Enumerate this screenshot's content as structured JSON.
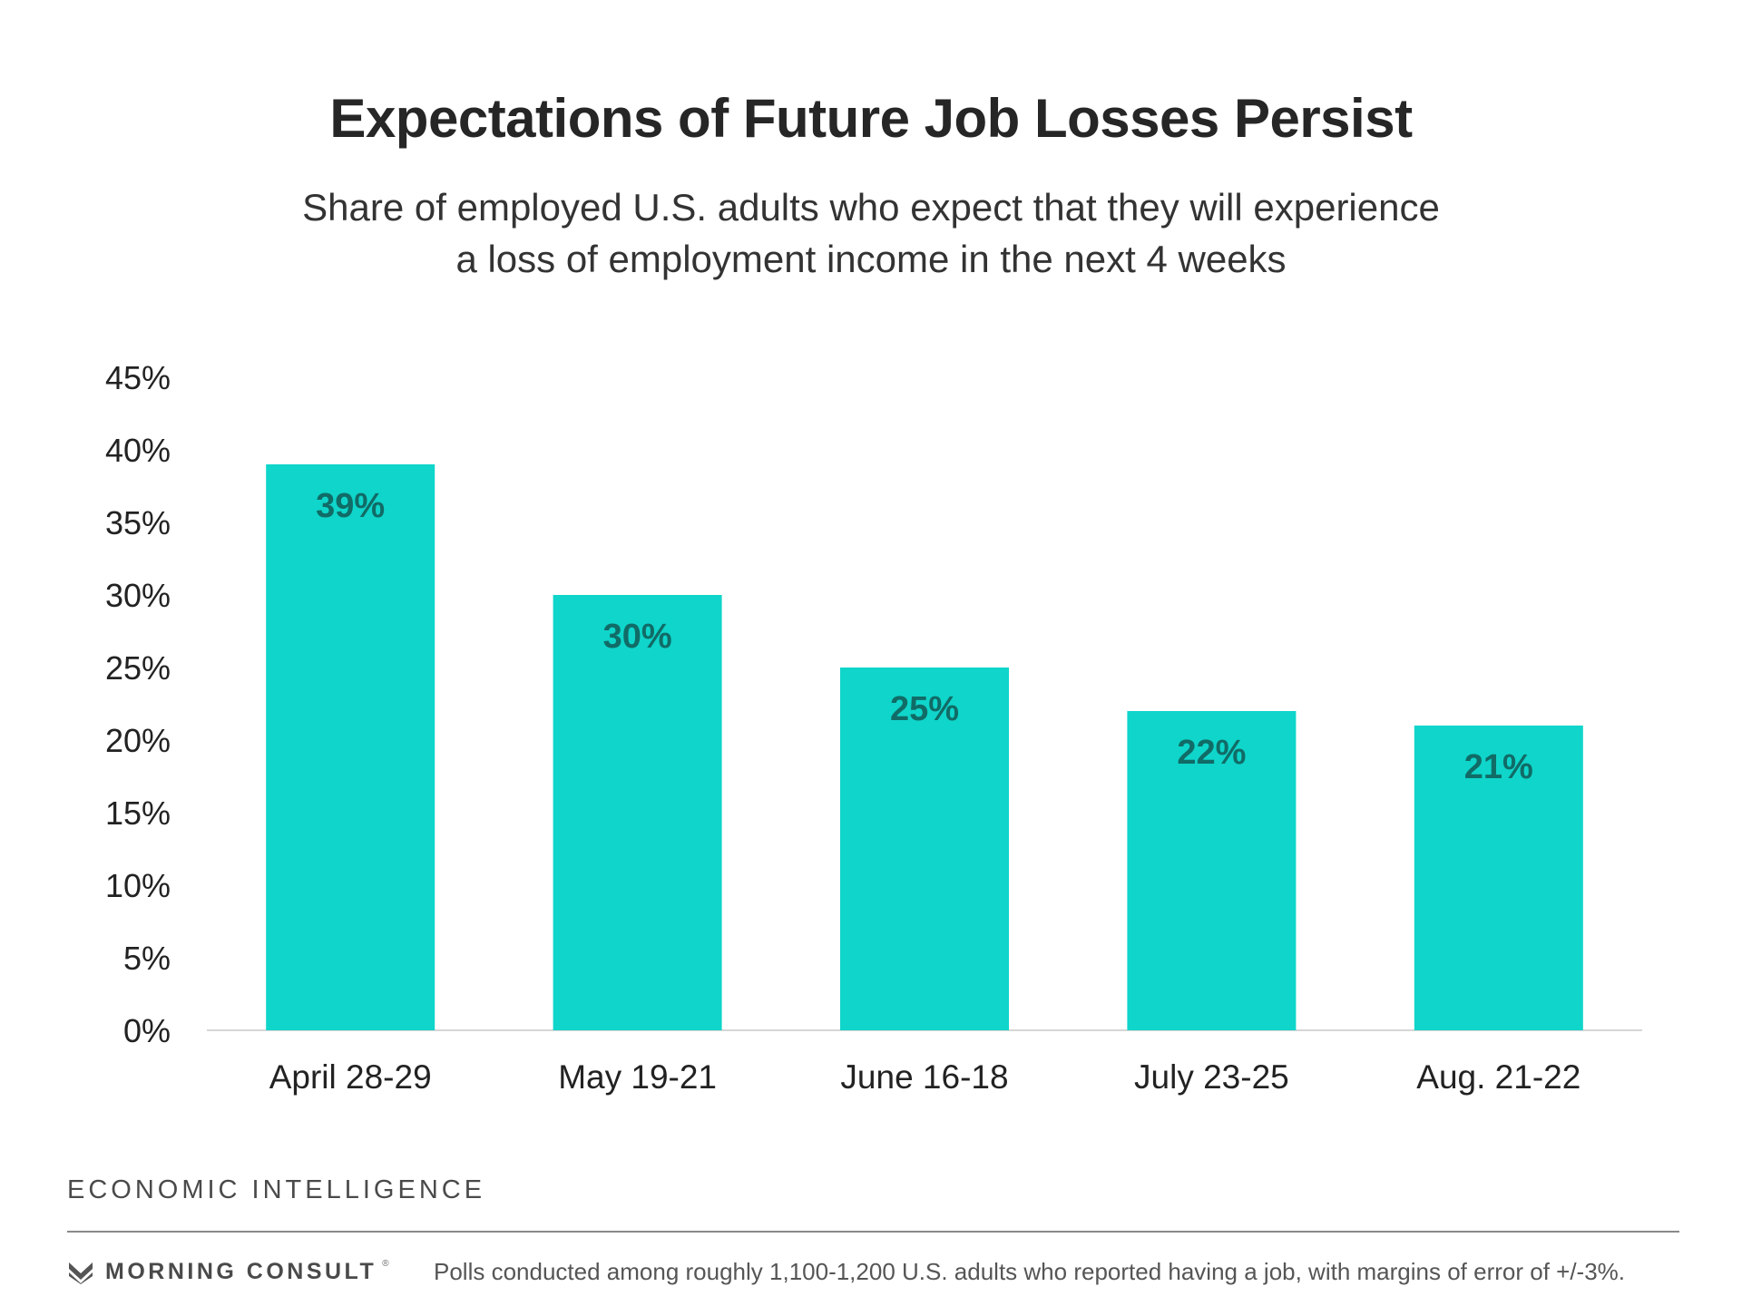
{
  "chart_data": {
    "type": "bar",
    "title": "Expectations of Future Job Losses Persist",
    "subtitle": [
      "Share of employed U.S. adults who expect that they will experience",
      "a loss of employment income in the next 4 weeks"
    ],
    "categories": [
      "April 28-29",
      "May 19-21",
      "June 16-18",
      "July 23-25",
      "Aug. 21-22"
    ],
    "values": [
      39,
      30,
      25,
      22,
      21
    ],
    "data_labels": [
      "39%",
      "30%",
      "25%",
      "22%",
      "21%"
    ],
    "y_ticks": [
      "0%",
      "5%",
      "10%",
      "15%",
      "20%",
      "25%",
      "30%",
      "35%",
      "40%",
      "45%"
    ],
    "ylim": [
      0,
      45
    ],
    "xlabel": "",
    "ylabel": "",
    "grid": false,
    "legend": "none",
    "bar_color": "#0fd5ca",
    "label_color": "#116b66"
  },
  "footer": {
    "section": "ECONOMIC INTELLIGENCE",
    "brand": "MORNING CONSULT",
    "brand_mark": "®",
    "note": "Polls conducted among roughly 1,100-1,200 U.S. adults who reported having a job, with margins of error of +/-3%."
  }
}
